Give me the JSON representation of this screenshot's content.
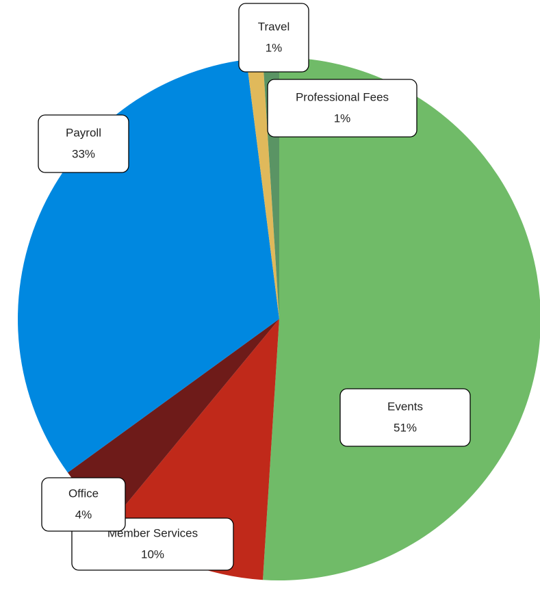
{
  "chart_data": {
    "type": "pie",
    "categories": [
      "Events",
      "Member Services",
      "Office",
      "Payroll",
      "Travel",
      "Professional Fees"
    ],
    "values": [
      51,
      10,
      4,
      33,
      1,
      1
    ],
    "value_labels": [
      "51%",
      "10%",
      "4%",
      "33%",
      "1%",
      "1%"
    ],
    "colors": [
      "#70bb68",
      "#c0291a",
      "#6e1b19",
      "#0088e0",
      "#e0b95b",
      "#5a9464"
    ]
  }
}
